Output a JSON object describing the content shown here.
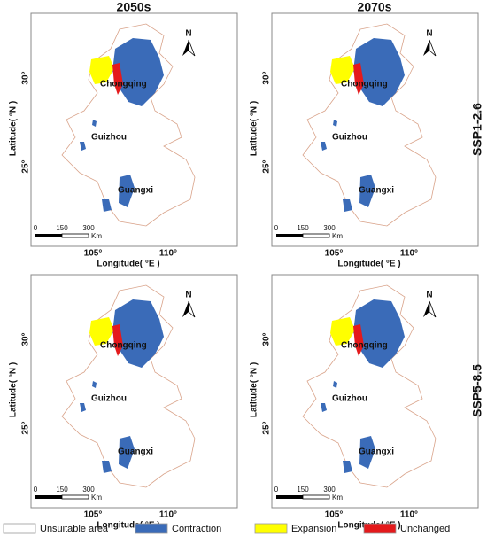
{
  "columns": [
    "2050s",
    "2070s"
  ],
  "rows": [
    "SSP1-2.6",
    "SSP5-8.5"
  ],
  "axes": {
    "x_label": "Longitude( °E )",
    "y_label": "Latitude( °N )",
    "x_ticks": [
      "105°",
      "110°"
    ],
    "y_ticks": [
      "30°",
      "25°"
    ]
  },
  "regions": [
    "Chongqing",
    "Guizhou",
    "Guangxi"
  ],
  "north": "N",
  "scale_bar": {
    "labels": [
      "0",
      "150",
      "300"
    ],
    "unit": "Km"
  },
  "legend": [
    {
      "label": "Unsuitable area",
      "color": "#ffffff"
    },
    {
      "label": "Contraction",
      "color": "#3a6bb8"
    },
    {
      "label": "Expansion",
      "color": "#ffff00"
    },
    {
      "label": "Unchanged",
      "color": "#e41a1c"
    }
  ]
}
